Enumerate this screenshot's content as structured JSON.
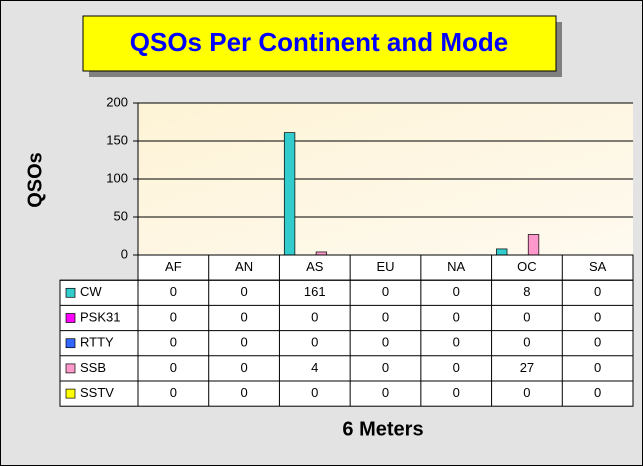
{
  "chart_data": {
    "type": "bar",
    "title": "QSOs Per Continent and Mode",
    "y_label": "QSOs",
    "x_label": "6 Meters",
    "categories": [
      "AF",
      "AN",
      "AS",
      "EU",
      "NA",
      "OC",
      "SA"
    ],
    "series": [
      {
        "name": "CW",
        "color": "#33cccc",
        "values": [
          0,
          0,
          161,
          0,
          0,
          8,
          0
        ]
      },
      {
        "name": "PSK31",
        "color": "#ff00ff",
        "values": [
          0,
          0,
          0,
          0,
          0,
          0,
          0
        ]
      },
      {
        "name": "RTTY",
        "color": "#3366ff",
        "values": [
          0,
          0,
          0,
          0,
          0,
          0,
          0
        ]
      },
      {
        "name": "SSB",
        "color": "#ff99cc",
        "values": [
          0,
          0,
          4,
          0,
          0,
          27,
          0
        ]
      },
      {
        "name": "SSTV",
        "color": "#ffff00",
        "values": [
          0,
          0,
          0,
          0,
          0,
          0,
          0
        ]
      }
    ],
    "ylim": [
      0,
      200
    ],
    "yticks": [
      0,
      50,
      100,
      150,
      200
    ],
    "grid": true,
    "data_table": true
  }
}
